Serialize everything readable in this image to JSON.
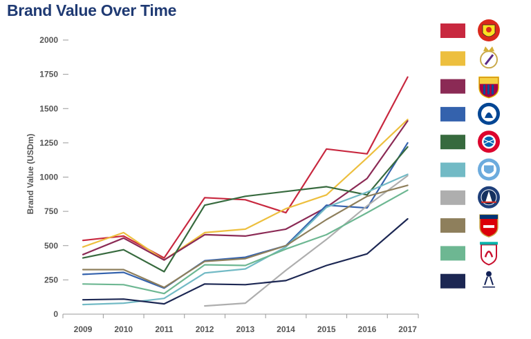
{
  "chart_data": {
    "type": "line",
    "title": "Brand Value Over Time",
    "xlabel": "",
    "ylabel": "Brand Value (USDm)",
    "ylim": [
      0,
      2000
    ],
    "x": [
      "2009",
      "2010",
      "2011",
      "2012",
      "2013",
      "2014",
      "2015",
      "2016",
      "2017"
    ],
    "yticks": [
      "0",
      "250",
      "500",
      "750",
      "1000",
      "1250",
      "1500",
      "1750",
      "2000"
    ],
    "legend_position": "right",
    "legend_type": "club-crest icons",
    "series": [
      {
        "icon": "manchester-united-crest-icon",
        "color": "#c8283f",
        "values": [
          538,
          570,
          410,
          850,
          835,
          740,
          1205,
          1170,
          1730
        ]
      },
      {
        "icon": "real-madrid-crest-icon",
        "color": "#edbf3e",
        "values": [
          490,
          595,
          395,
          595,
          620,
          770,
          870,
          1140,
          1420
        ]
      },
      {
        "icon": "fc-barcelona-crest-icon",
        "color": "#8b2a55",
        "values": [
          435,
          555,
          395,
          580,
          570,
          620,
          780,
          990,
          1410
        ]
      },
      {
        "icon": "chelsea-crest-icon",
        "color": "#3462ad",
        "values": [
          290,
          305,
          190,
          390,
          415,
          500,
          795,
          775,
          1250
        ]
      },
      {
        "icon": "bayern-munich-crest-icon",
        "color": "#376a3e",
        "values": [
          410,
          470,
          310,
          795,
          860,
          895,
          930,
          870,
          1220
        ]
      },
      {
        "icon": "manchester-city-crest-icon",
        "color": "#72bac5",
        "values": [
          70,
          80,
          115,
          300,
          330,
          490,
          780,
          890,
          1020
        ]
      },
      {
        "icon": "paris-saint-germain-crest-icon",
        "color": "#aeaeae",
        "values": [
          null,
          null,
          null,
          60,
          80,
          320,
          545,
          790,
          1010
        ]
      },
      {
        "icon": "arsenal-crest-icon",
        "color": "#8e7f5c",
        "values": [
          325,
          325,
          195,
          385,
          405,
          500,
          690,
          860,
          940
        ]
      },
      {
        "icon": "liverpool-crest-icon",
        "color": "#6db792",
        "values": [
          220,
          215,
          150,
          360,
          355,
          475,
          580,
          740,
          905
        ]
      },
      {
        "icon": "tottenham-hotspur-crest-icon",
        "color": "#1c2753",
        "values": [
          105,
          110,
          75,
          220,
          215,
          245,
          355,
          440,
          695
        ]
      }
    ]
  }
}
